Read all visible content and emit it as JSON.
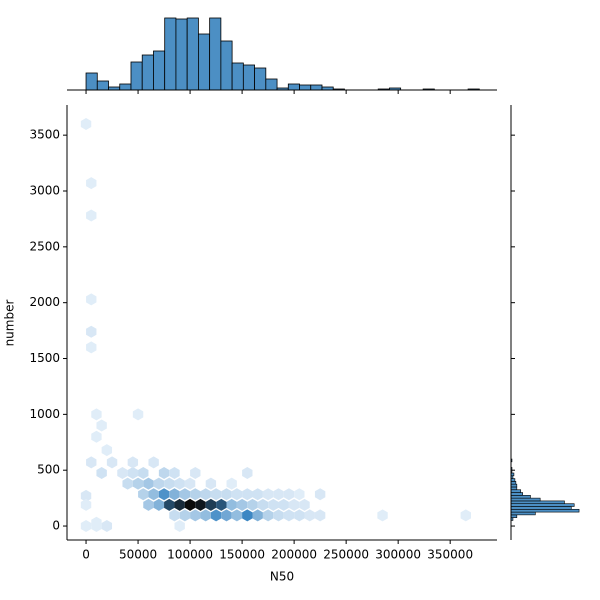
{
  "chart_data": [
    {
      "type": "hexbin",
      "x_label": "N50",
      "y_label": "number",
      "xlim": [
        -18300,
        395000
      ],
      "ylim": [
        -125,
        3770
      ],
      "xticks": [
        0,
        50000,
        100000,
        150000,
        200000,
        250000,
        300000,
        350000
      ],
      "yticks": [
        0,
        500,
        1000,
        1500,
        2000,
        2500,
        3000,
        3500
      ],
      "colors": [
        "#e9f2fb",
        "#3d87c3",
        "#0b0b0b"
      ],
      "x": [
        60000,
        70000,
        80000,
        90000,
        100000,
        110000,
        120000,
        130000,
        140000,
        150000,
        160000,
        170000,
        180000,
        190000,
        200000,
        210000,
        85000,
        95000,
        105000,
        115000,
        125000,
        135000,
        145000,
        155000,
        165000,
        175000,
        185000,
        195000,
        205000,
        215000,
        225000,
        285000,
        365000,
        55000,
        65000,
        75000,
        85000,
        95000,
        105000,
        115000,
        125000,
        135000,
        145000,
        155000,
        165000,
        175000,
        185000,
        195000,
        205000,
        225000,
        40000,
        50000,
        60000,
        70000,
        80000,
        90000,
        100000,
        120000,
        140000,
        15000,
        35000,
        45000,
        55000,
        75000,
        85000,
        105000,
        155000,
        5000,
        25000,
        45000,
        65000,
        0,
        10000,
        20000,
        90000,
        0,
        5000,
        5000,
        5000,
        5000,
        5000,
        10000,
        15000,
        10000,
        20000,
        50000,
        0,
        0,
        10000
      ],
      "y": [
        190,
        190,
        190,
        190,
        190,
        190,
        190,
        190,
        190,
        190,
        190,
        190,
        190,
        190,
        190,
        190,
        95,
        95,
        95,
        95,
        95,
        95,
        95,
        95,
        95,
        95,
        95,
        95,
        95,
        95,
        95,
        95,
        95,
        285,
        285,
        285,
        285,
        285,
        285,
        285,
        285,
        285,
        285,
        285,
        285,
        285,
        285,
        285,
        285,
        285,
        380,
        380,
        380,
        380,
        380,
        380,
        380,
        380,
        380,
        475,
        475,
        475,
        475,
        475,
        475,
        475,
        475,
        570,
        570,
        570,
        570,
        0,
        0,
        0,
        0,
        3600,
        3070,
        2780,
        2030,
        1740,
        1600,
        1000,
        900,
        800,
        680,
        1000,
        270,
        190,
        30
      ],
      "counts": [
        8,
        12,
        30,
        35,
        40,
        38,
        32,
        28,
        10,
        8,
        6,
        4,
        3,
        3,
        2,
        2,
        4,
        6,
        8,
        10,
        18,
        14,
        10,
        20,
        12,
        6,
        4,
        3,
        3,
        2,
        2,
        1,
        1,
        6,
        10,
        18,
        12,
        8,
        6,
        5,
        4,
        4,
        3,
        3,
        3,
        2,
        2,
        2,
        1,
        2,
        4,
        6,
        8,
        5,
        4,
        3,
        2,
        2,
        1,
        3,
        2,
        3,
        4,
        5,
        3,
        2,
        2,
        2,
        2,
        2,
        2,
        1,
        1,
        2,
        1,
        1,
        1,
        1,
        1,
        2,
        1,
        1,
        1,
        1,
        1,
        1,
        2,
        1,
        1
      ]
    },
    {
      "type": "histogram",
      "orientation": "vertical",
      "color": "#4c8fc4",
      "bins": [
        0,
        10800,
        21600,
        32400,
        43200,
        54000,
        64800,
        75600,
        86400,
        97200,
        108000,
        118800,
        129600,
        140400,
        151200,
        162000,
        172800,
        183600,
        194400,
        205200,
        216000,
        226800,
        237600,
        248400,
        259200,
        270000,
        280800,
        291600,
        302400,
        313200,
        324000,
        334800,
        345600,
        356400,
        367200,
        378000
      ],
      "counts": [
        17,
        9,
        3,
        6,
        28,
        35,
        39,
        72,
        71,
        72,
        56,
        72,
        49,
        27,
        25,
        22,
        11,
        2,
        6,
        5,
        5,
        3,
        1,
        0,
        0,
        0,
        1,
        2,
        0,
        0,
        1,
        0,
        0,
        0,
        1
      ],
      "ylim": [
        0,
        72
      ]
    },
    {
      "type": "histogram",
      "orientation": "horizontal",
      "color": "#4c8fc4",
      "bins": [
        50,
        75,
        100,
        125,
        150,
        175,
        200,
        225,
        250,
        275,
        300,
        325,
        350,
        375,
        400,
        425,
        450,
        475,
        500,
        525,
        550,
        575,
        600
      ],
      "counts": [
        2,
        6,
        25,
        70,
        62,
        65,
        55,
        30,
        20,
        12,
        10,
        6,
        6,
        5,
        4,
        2,
        3,
        1,
        1,
        0,
        0,
        1
      ],
      "xlim": [
        0,
        72
      ]
    }
  ]
}
